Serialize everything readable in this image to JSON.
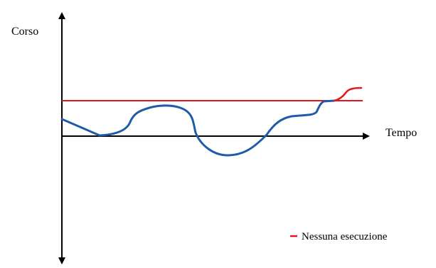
{
  "diagram": {
    "y_axis_label": "Corso",
    "x_axis_label": "Tempo",
    "legend": {
      "label": "Nessuna esecuzione",
      "color": "#e8141b"
    },
    "colors": {
      "axes": "#000000",
      "reference_line": "#e8141b",
      "price_curve": "#1f5ba8",
      "curve_end_segment": "#e8141b"
    }
  }
}
